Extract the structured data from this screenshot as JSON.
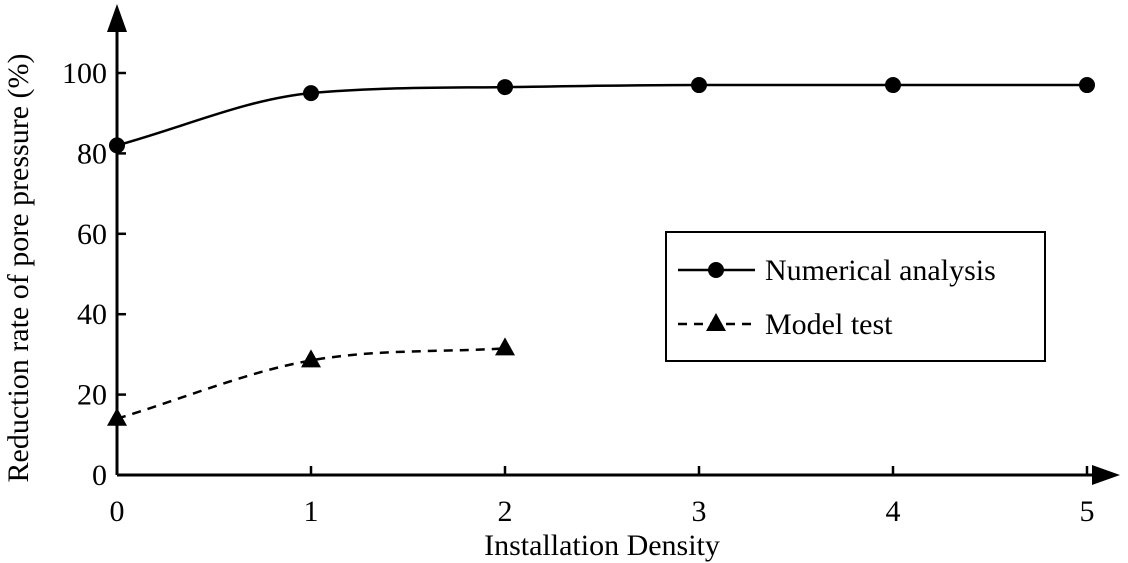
{
  "chart_data": {
    "type": "line",
    "xlabel": "Installation Density",
    "ylabel": "Reduction rate of pore pressure (%)",
    "xlim": [
      0,
      5
    ],
    "ylim": [
      0,
      100
    ],
    "x_ticks": [
      "0",
      "1",
      "2",
      "3",
      "4",
      "5"
    ],
    "y_ticks": [
      "0",
      "20",
      "40",
      "60",
      "80",
      "100"
    ],
    "grid": false,
    "legend_position": "center-right",
    "series": [
      {
        "name": "Numerical analysis",
        "marker": "circle",
        "line_style": "solid",
        "color": "#000000",
        "x": [
          0,
          1,
          2,
          3,
          4,
          5
        ],
        "values": [
          82,
          95,
          96.5,
          97,
          97,
          97
        ]
      },
      {
        "name": "Model test",
        "marker": "triangle",
        "line_style": "dashed",
        "color": "#000000",
        "x": [
          0,
          1,
          2
        ],
        "values": [
          14,
          28.5,
          31.5
        ]
      }
    ]
  }
}
